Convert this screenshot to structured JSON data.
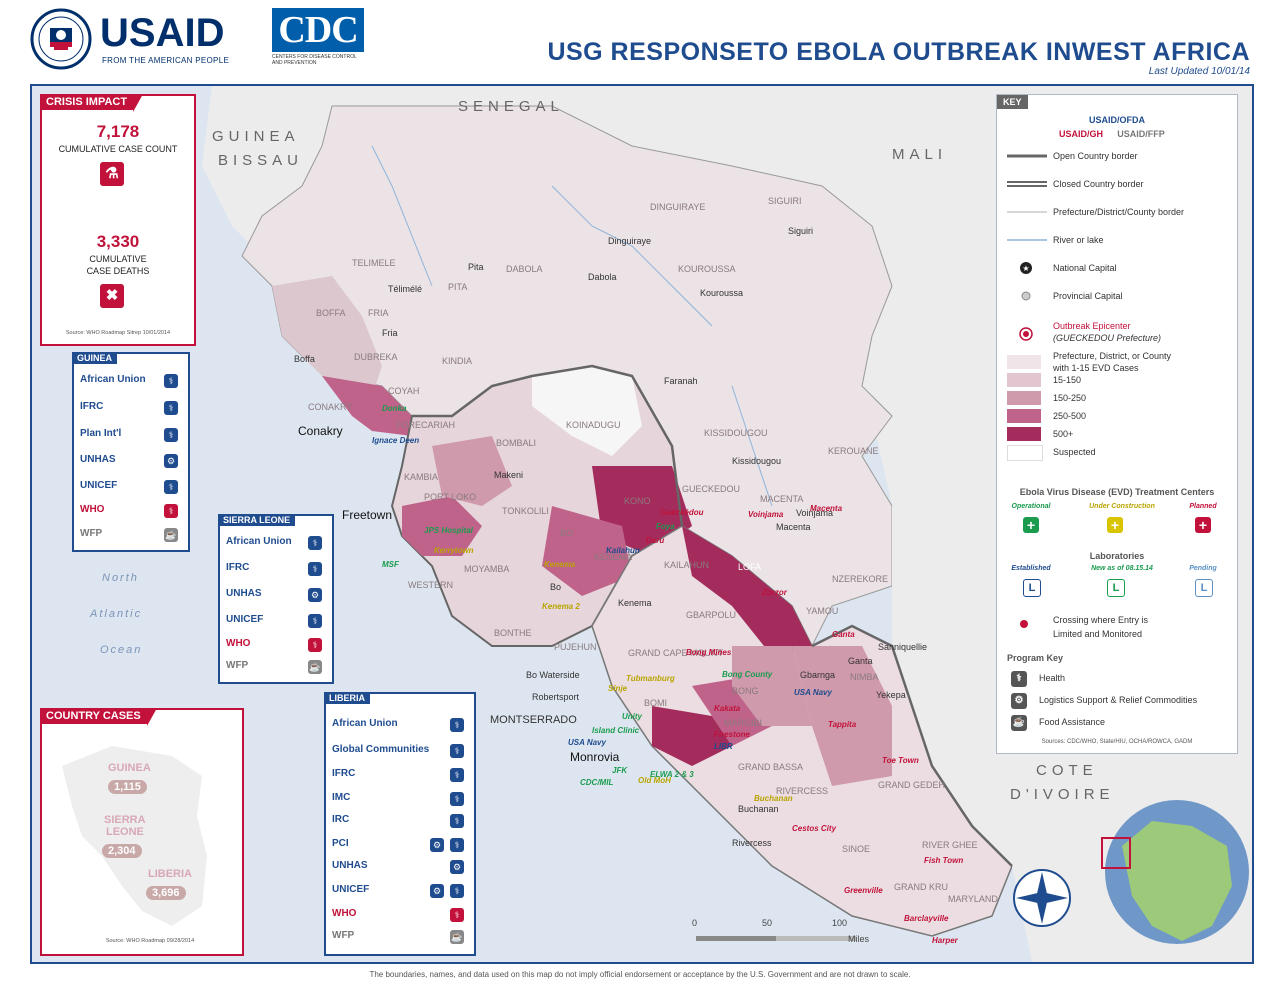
{
  "header": {
    "usaid_word": "USAID",
    "usaid_tagline": "FROM THE AMERICAN PEOPLE",
    "cdc_word": "CDC",
    "cdc_sub": "CENTERS FOR DISEASE CONTROL AND PREVENTION",
    "title": "USG RESPONSETO EBOLA OUTBREAK INWEST AFRICA",
    "last_updated": "Last Updated 10/01/14"
  },
  "crisis_impact": {
    "title": "CRISIS IMPACT",
    "cases_value": "7,178",
    "cases_label": "CUMULATIVE CASE COUNT",
    "deaths_value": "3,330",
    "deaths_label_1": "CUMULATIVE",
    "deaths_label_2": "CASE DEATHS",
    "source": "Source: WHO Roadmap Sitrep 10/01/2014"
  },
  "partners": {
    "guinea": {
      "title": "GUINEA",
      "rows": [
        "African Union",
        "IFRC",
        "Plan Int'l",
        "UNHAS",
        "UNICEF",
        "WHO",
        "WFP"
      ]
    },
    "sierra_leone": {
      "title": "SIERRA LEONE",
      "rows": [
        "African Union",
        "IFRC",
        "UNHAS",
        "UNICEF",
        "WHO",
        "WFP"
      ]
    },
    "liberia": {
      "title": "LIBERIA",
      "rows": [
        "African Union",
        "Global Communities",
        "IFRC",
        "IMC",
        "IRC",
        "PCI",
        "UNHAS",
        "UNICEF",
        "WHO",
        "WFP"
      ]
    }
  },
  "country_cases": {
    "title": "COUNTRY CASES",
    "guinea_name": "GUINEA",
    "guinea_value": "1,115",
    "sl_name_1": "SIERRA",
    "sl_name_2": "LEONE",
    "sl_value": "2,304",
    "liberia_name": "LIBERIA",
    "liberia_value": "3,696",
    "source": "Source: WHO Roadmap 09/28/2014"
  },
  "countries": {
    "senegal": "SENEGAL",
    "guinea_bissau_1": "GUINEA",
    "guinea_bissau_2": "BISSAU",
    "mali": "MALI",
    "cote_1": "COTE",
    "cote_2": "D'IVOIRE"
  },
  "ocean": {
    "l1": "North",
    "l2": "Atlantic",
    "l3": "Ocean"
  },
  "regions": {
    "telimele": "TELIMELE",
    "boffa": "BOFFA",
    "fria": "FRIA",
    "dubreka": "DUBREKA",
    "coyah": "COYAH",
    "forecariah": "FORECARIAH",
    "conakry_r": "CONAKRY",
    "kindia": "KINDIA",
    "pita": "PITA",
    "dabola": "DABOLA",
    "dinguiraye": "DINGUIRAYE",
    "kouroussa": "KOUROUSSA",
    "siguiri": "SIGUIRI",
    "kissidougou": "KISSIDOUGOU",
    "gueckedou": "GUECKEDOU",
    "macenta": "MACENTA",
    "kerouane": "KEROUANE",
    "nzerekore": "NZEREKORE",
    "bombali": "BOMBALI",
    "koinadugu": "KOINADUGU",
    "kambia": "KAMBIA",
    "port_loko": "PORT LOKO",
    "tonkolili": "TONKOLILI",
    "kono": "KONO",
    "bo": "BO",
    "kenema": "KENEMA",
    "kailahun": "KAILAHUN",
    "moyamba": "MOYAMBA",
    "bonthe": "BONTHE",
    "pujehun": "PUJEHUN",
    "western": "WESTERN",
    "lofa": "LOFA",
    "gbarpolu": "GBARPOLU",
    "grand_cape_mount": "GRAND\nCAPE MOUNT",
    "bomi": "BOMI",
    "bong": "BONG",
    "montserrado": "MONTSERRADO",
    "margibi": "MARGIBI",
    "grand_bassa": "GRAND\nBASSA",
    "rivercess": "RIVERCESS",
    "nimba": "NIMBA",
    "grand_gedeh": "GRAND GEDEH",
    "sinoe": "SINOE",
    "river_gee": "RIVER GHEE",
    "grand_kru": "GRAND\nKRU",
    "maryland": "MARYLAND",
    "yamou": "YAMOU"
  },
  "cities": {
    "telimele": "Télimélé",
    "pita": "Pita",
    "dabola": "Dabola",
    "dinguiraye": "Dinguiraye",
    "siguiri": "Siguiri",
    "kouroussa": "Kouroussa",
    "fria": "Fria",
    "boffa": "Boffa",
    "faranah": "Faranah",
    "kissidougou": "Kissidougou",
    "makeni": "Makeni",
    "bo": "Bo",
    "kenema": "Kenema",
    "bo_waterside": "Bo Waterside",
    "robertsport": "Robertsport",
    "gbarnga": "Gbarnga",
    "ganta": "Ganta",
    "yekepa": "Yekepa",
    "saniquellie": "Sanniquellie",
    "buchanan": "Buchanan",
    "rivercess": "Rivercess",
    "macenta": "Macenta",
    "voinjama": "Voinjama",
    "conakry": "Conakry",
    "freetown": "Freetown",
    "monrovia": "Monrovia"
  },
  "sites": {
    "donka": "Donka",
    "ignace_deen": "Ignace Deen",
    "jps": "JPS Hospital",
    "kailahun_c": "Kailahun",
    "msf": "MSF",
    "kerry_town": "Kerrytown",
    "bo_site": "Kenema",
    "kenema_site": "Kenema",
    "daru": "Daru",
    "gueckedou_s": "Guéckédou",
    "macenta_s": "Macenta",
    "voinjama_s": "Voinjama",
    "foya": "Foya",
    "zorzor": "Zorzor",
    "tubmanburg": "Tubmanburg",
    "bong_county": "Bong County",
    "usa_navy": "USA Navy",
    "eldoa": "ELWA 2 & 3",
    "island_clinic": "Island Clinic",
    "unity": "Unity",
    "old_moh": "Old MoH",
    "cdc_mil": "CDC/MIL",
    "jfk": "JFK",
    "sajiko": "Sajiko",
    "ganta_s": "Ganta",
    "tappita": "Tappita",
    "toe_town": "Toe Town",
    "buchanan_s": "Buchanan",
    "cestos": "Cestos City",
    "fish_town": "Fish Town",
    "greenville": "Greenville",
    "barclayville": "Barclayville",
    "harper": "Harper",
    "kakata": "Kakata",
    "firestone": "Firestone",
    "bong_mines": "Bong Mines",
    "sinje": "Sinje",
    "liberia_s": "LIBR",
    "kenema_s2": "Kenema 2"
  },
  "key": {
    "title": "KEY",
    "agency1": "USAID/OFDA",
    "agency2": "USAID/GH",
    "agency3": "USAID/FFP",
    "open_border": "Open Country border",
    "closed_border": "Closed Country border",
    "admin_border": "Prefecture/District/County border",
    "river": "River or lake",
    "national_capital": "National Capital",
    "provincial_capital": "Provincial Capital",
    "epicenter_1": "Outbreak Epicenter",
    "epicenter_2": "(GUECKEDOU Prefecture)",
    "shade_label_1": "Prefecture, District, or County",
    "shade_label_2": "with 1-15 EVD Cases",
    "shade_2": "15-150",
    "shade_3": "150-250",
    "shade_4": "250-500",
    "shade_5": "500+",
    "suspected": "Suspected",
    "etc_title": "Ebola Virus Disease (EVD) Treatment Centers",
    "operational": "Operational",
    "under_construction": "Under Construction",
    "planned": "Planned",
    "labs_title": "Laboratories",
    "established": "Established",
    "new_as_of": "New as of 08.15.14",
    "pending": "Pending",
    "crossing_1": "Crossing where Entry is",
    "crossing_2": "Limited and Monitored",
    "program_key": "Program Key",
    "health": "Health",
    "logistics": "Logistics Support & Relief Commodities",
    "food": "Food Assistance",
    "sources": "Sources: CDC/WHO, State/HIU, OCHA/ROWCA, GADM",
    "colors": {
      "s1": "#f1e4e8",
      "s2": "#e2c6cf",
      "s3": "#cf9aab",
      "s4": "#c0638a",
      "s5": "#a32c5c",
      "suspected": "#ffffff"
    }
  },
  "scale": {
    "s0": "0",
    "s50": "50",
    "s100": "100",
    "miles": "Miles"
  },
  "footnote": "The boundaries, names, and data used on this map do not imply official endorsement or acceptance by the U.S. Government and are not drawn to scale."
}
